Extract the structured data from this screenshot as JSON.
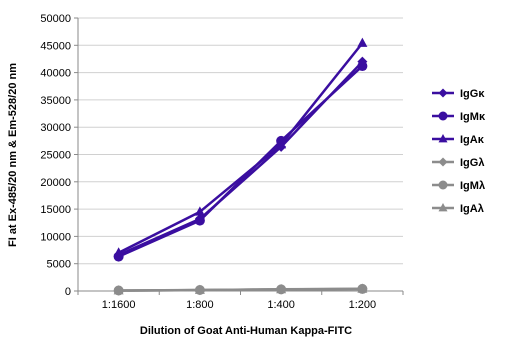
{
  "chart_data": {
    "type": "line",
    "title": "",
    "xlabel": "Dilution of Goat Anti-Human Kappa-FITC",
    "ylabel": "FI at Ex-485/20 nm & Em-528/20 nm",
    "categories": [
      "1:1600",
      "1:800",
      "1:400",
      "1:200"
    ],
    "ylim": [
      0,
      50000
    ],
    "yticks": [
      0,
      5000,
      10000,
      15000,
      20000,
      25000,
      30000,
      35000,
      40000,
      45000,
      50000
    ],
    "grid": "horizontal",
    "legend": "right",
    "series": [
      {
        "name": "IgGκ",
        "marker": "diamond",
        "color": "#3a0ea0",
        "values": [
          6600,
          13200,
          26400,
          42000
        ]
      },
      {
        "name": "IgMκ",
        "marker": "circle",
        "color": "#3a0ea0",
        "values": [
          6300,
          12900,
          27500,
          41200
        ]
      },
      {
        "name": "IgAκ",
        "marker": "triangle",
        "color": "#3a0ea0",
        "values": [
          7000,
          14500,
          26800,
          45400
        ]
      },
      {
        "name": "IgGλ",
        "marker": "diamond",
        "color": "#8c8c8c",
        "values": [
          80,
          170,
          320,
          400
        ]
      },
      {
        "name": "IgMλ",
        "marker": "circle",
        "color": "#8c8c8c",
        "values": [
          90,
          180,
          300,
          380
        ]
      },
      {
        "name": "IgAλ",
        "marker": "triangle",
        "color": "#8c8c8c",
        "values": [
          70,
          160,
          280,
          360
        ]
      }
    ]
  }
}
